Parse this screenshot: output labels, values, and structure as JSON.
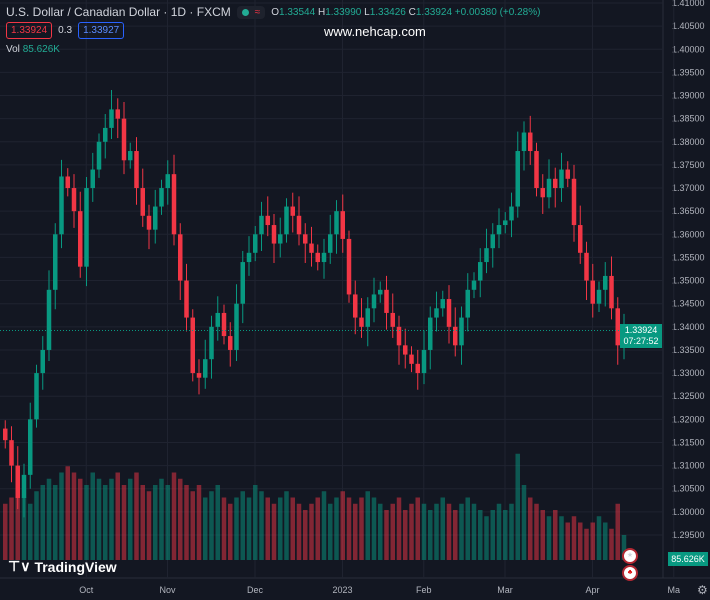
{
  "header": {
    "title": "U.S. Dollar / Canadian Dollar · 1D · FXCM",
    "o_label": "O",
    "o": "1.33544",
    "h_label": "H",
    "h": "1.33990",
    "l_label": "L",
    "l": "1.33426",
    "c_label": "C",
    "c": "1.33924",
    "change": "+0.00380 (+0.28%)",
    "pill_icon": "≈"
  },
  "quote": {
    "bid": "1.33924",
    "spread": "0.3",
    "ask": "1.33927"
  },
  "volume_legend": {
    "label": "Vol",
    "value": "85.626K"
  },
  "watermark": "www.nehcap.com",
  "last_price_label": {
    "price": "1.33924",
    "countdown": "07:27:52"
  },
  "volume_label": "85.626K",
  "logo": "TradingView",
  "colors": {
    "up": "#089981",
    "down": "#f23645",
    "bg": "#131722",
    "grid": "#1f2330"
  },
  "chart_data": {
    "type": "candlestick",
    "title": "U.S. Dollar / Canadian Dollar · 1D · FXCM",
    "ylim": [
      1.29,
      1.41
    ],
    "y_ticks": [
      "1.41000",
      "1.40500",
      "1.40000",
      "1.39500",
      "1.39000",
      "1.38500",
      "1.38000",
      "1.37500",
      "1.37000",
      "1.36500",
      "1.36000",
      "1.35500",
      "1.35000",
      "1.34500",
      "1.34000",
      "1.33500",
      "1.33000",
      "1.32500",
      "1.32000",
      "1.31500",
      "1.31000",
      "1.30500",
      "1.30000",
      "1.29500"
    ],
    "x_ticks": [
      {
        "label": "Oct",
        "index": 13
      },
      {
        "label": "Nov",
        "index": 26
      },
      {
        "label": "Dec",
        "index": 40
      },
      {
        "label": "2023",
        "index": 54
      },
      {
        "label": "Feb",
        "index": 67
      },
      {
        "label": "Mar",
        "index": 80
      },
      {
        "label": "Apr",
        "index": 94
      },
      {
        "label": "Ma",
        "index": 107
      }
    ],
    "start_open": 1.318,
    "closes": [
      1.3155,
      1.31,
      1.303,
      1.308,
      1.32,
      1.33,
      1.335,
      1.348,
      1.36,
      1.3725,
      1.37,
      1.365,
      1.353,
      1.37,
      1.374,
      1.38,
      1.383,
      1.387,
      1.385,
      1.376,
      1.378,
      1.37,
      1.364,
      1.361,
      1.366,
      1.37,
      1.373,
      1.36,
      1.35,
      1.342,
      1.33,
      1.329,
      1.333,
      1.34,
      1.343,
      1.338,
      1.335,
      1.345,
      1.354,
      1.356,
      1.36,
      1.364,
      1.362,
      1.358,
      1.36,
      1.366,
      1.364,
      1.36,
      1.358,
      1.356,
      1.354,
      1.356,
      1.36,
      1.365,
      1.359,
      1.347,
      1.342,
      1.34,
      1.344,
      1.347,
      1.348,
      1.343,
      1.34,
      1.336,
      1.334,
      1.332,
      1.33,
      1.335,
      1.342,
      1.344,
      1.346,
      1.34,
      1.336,
      1.342,
      1.348,
      1.35,
      1.354,
      1.357,
      1.36,
      1.362,
      1.363,
      1.366,
      1.378,
      1.382,
      1.378,
      1.37,
      1.368,
      1.372,
      1.37,
      1.374,
      1.372,
      1.362,
      1.356,
      1.35,
      1.345,
      1.348,
      1.351,
      1.344,
      1.336,
      1.3392
    ],
    "volume": [
      0.45,
      0.5,
      0.55,
      0.5,
      0.45,
      0.55,
      0.6,
      0.65,
      0.6,
      0.7,
      0.75,
      0.7,
      0.65,
      0.6,
      0.7,
      0.65,
      0.6,
      0.65,
      0.7,
      0.6,
      0.65,
      0.7,
      0.6,
      0.55,
      0.6,
      0.65,
      0.6,
      0.7,
      0.65,
      0.6,
      0.55,
      0.6,
      0.5,
      0.55,
      0.6,
      0.5,
      0.45,
      0.5,
      0.55,
      0.5,
      0.6,
      0.55,
      0.5,
      0.45,
      0.5,
      0.55,
      0.5,
      0.45,
      0.4,
      0.45,
      0.5,
      0.55,
      0.45,
      0.5,
      0.55,
      0.5,
      0.45,
      0.5,
      0.55,
      0.5,
      0.45,
      0.4,
      0.45,
      0.5,
      0.4,
      0.45,
      0.5,
      0.45,
      0.4,
      0.45,
      0.5,
      0.45,
      0.4,
      0.45,
      0.5,
      0.45,
      0.4,
      0.35,
      0.4,
      0.45,
      0.4,
      0.45,
      0.85,
      0.6,
      0.5,
      0.45,
      0.4,
      0.35,
      0.4,
      0.35,
      0.3,
      0.35,
      0.3,
      0.25,
      0.3,
      0.35,
      0.3,
      0.25,
      0.45,
      0.2
    ]
  }
}
